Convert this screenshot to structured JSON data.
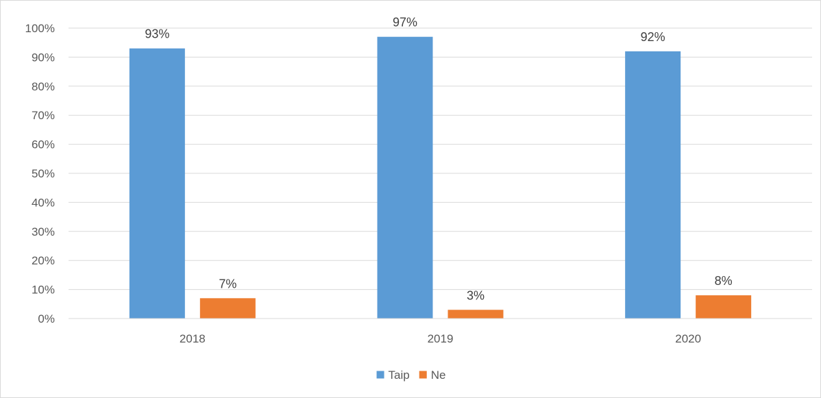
{
  "chart_data": {
    "type": "bar",
    "title": "",
    "xlabel": "",
    "ylabel": "",
    "categories": [
      "2018",
      "2019",
      "2020"
    ],
    "series": [
      {
        "name": "Taip",
        "values": [
          93,
          97,
          92
        ],
        "labels": [
          "93%",
          "97%",
          "92%"
        ],
        "color": "#5B9BD5"
      },
      {
        "name": "Ne",
        "values": [
          7,
          3,
          8
        ],
        "labels": [
          "7%",
          "3%",
          "8%"
        ],
        "color": "#ED7D31"
      }
    ],
    "ylim": [
      0,
      100
    ],
    "yticks": [
      0,
      10,
      20,
      30,
      40,
      50,
      60,
      70,
      80,
      90,
      100
    ],
    "ytick_labels": [
      "0%",
      "10%",
      "20%",
      "30%",
      "40%",
      "50%",
      "60%",
      "70%",
      "80%",
      "90%",
      "100%"
    ],
    "grid": true,
    "legend_position": "bottom-center"
  }
}
